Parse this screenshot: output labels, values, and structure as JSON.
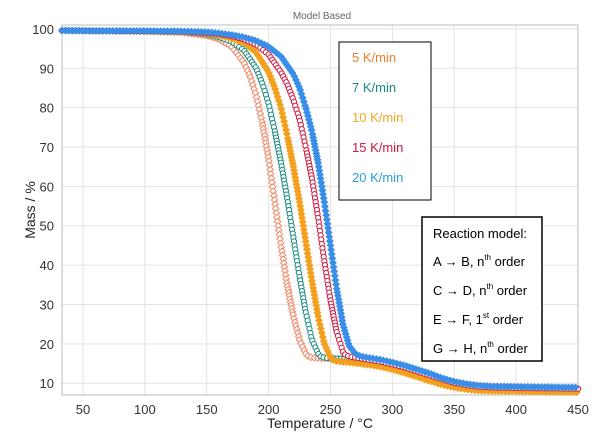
{
  "chart_data": {
    "type": "line",
    "title": "Model Based",
    "xlabel": "Temperature / °C",
    "ylabel": "Mass / %",
    "xlim": [
      33,
      450
    ],
    "ylim": [
      7,
      101
    ],
    "xticks": [
      50,
      100,
      150,
      200,
      250,
      300,
      350,
      400,
      450
    ],
    "yticks": [
      10,
      20,
      30,
      40,
      50,
      60,
      70,
      80,
      90,
      100
    ],
    "grid": true,
    "legend_position": "top-center-right",
    "series": [
      {
        "name": "5 K/min",
        "color": "#f08a68",
        "marker": "diamond-open",
        "x": [
          33,
          60,
          100,
          130,
          150,
          160,
          170,
          180,
          185,
          190,
          195,
          200,
          205,
          210,
          215,
          220,
          225,
          230,
          232,
          235,
          240,
          250,
          260,
          270,
          280,
          290,
          300,
          310,
          320,
          330,
          340,
          350,
          360,
          370,
          380,
          400,
          420,
          450
        ],
        "y": [
          99.6,
          99.5,
          99.4,
          99.1,
          98.3,
          97.4,
          95.5,
          91.5,
          88,
          83,
          76,
          67,
          56,
          45,
          35,
          27,
          21,
          17.5,
          16.8,
          16.5,
          16.4,
          16.2,
          16.2,
          16,
          15.6,
          15.2,
          14.6,
          13.8,
          13,
          12,
          11,
          10.2,
          9.6,
          9.2,
          9,
          8.9,
          8.8,
          8.7
        ]
      },
      {
        "name": "7 K/min",
        "color": "#1a8a80",
        "marker": "circle-open",
        "x": [
          33,
          60,
          100,
          130,
          150,
          160,
          170,
          180,
          190,
          195,
          200,
          205,
          210,
          215,
          220,
          225,
          230,
          235,
          240,
          242,
          245,
          250,
          260,
          270,
          280,
          290,
          300,
          310,
          320,
          330,
          340,
          350,
          360,
          370,
          380,
          400,
          420,
          450
        ],
        "y": [
          99.6,
          99.5,
          99.4,
          99.2,
          98.6,
          97.9,
          96.8,
          94.6,
          90,
          86,
          81,
          74,
          66,
          57,
          47,
          37,
          28,
          21,
          17.5,
          16.8,
          16.5,
          16.3,
          16.2,
          16,
          15.6,
          15.2,
          14.6,
          13.8,
          13,
          12,
          11,
          10.2,
          9.6,
          9.1,
          8.9,
          8.8,
          8.7,
          8.6
        ]
      },
      {
        "name": "10 K/min",
        "color": "#f3a01e",
        "marker": "diamond-filled",
        "x": [
          33,
          60,
          100,
          130,
          150,
          160,
          170,
          180,
          190,
          200,
          205,
          210,
          215,
          220,
          225,
          230,
          235,
          240,
          245,
          250,
          252,
          255,
          260,
          270,
          280,
          290,
          300,
          310,
          320,
          330,
          340,
          350,
          360,
          370,
          380,
          400,
          420,
          450
        ],
        "y": [
          99.6,
          99.5,
          99.4,
          99.2,
          98.8,
          98.3,
          97.6,
          96.5,
          94,
          89,
          85,
          80,
          73,
          65,
          56,
          46,
          36,
          27,
          20,
          16.5,
          15.9,
          15.6,
          15.4,
          15.1,
          14.7,
          14.2,
          13.5,
          12.6,
          11.6,
          10.6,
          9.6,
          8.9,
          8.4,
          8.1,
          8,
          7.9,
          7.8,
          7.7
        ]
      },
      {
        "name": "15 K/min",
        "color": "#d0173c",
        "marker": "circle-open",
        "x": [
          33,
          60,
          100,
          130,
          150,
          160,
          170,
          180,
          190,
          200,
          210,
          215,
          220,
          225,
          230,
          235,
          240,
          245,
          250,
          255,
          260,
          262,
          265,
          270,
          280,
          290,
          300,
          310,
          320,
          330,
          340,
          350,
          360,
          370,
          380,
          400,
          420,
          450
        ],
        "y": [
          99.6,
          99.5,
          99.4,
          99.3,
          99,
          98.7,
          98.2,
          97.4,
          96,
          93.5,
          89,
          86,
          82,
          77,
          70,
          62,
          52,
          41,
          31,
          23,
          18,
          17.2,
          16.8,
          16.5,
          16,
          15.5,
          14.8,
          14,
          13,
          12,
          11,
          10.1,
          9.5,
          9.1,
          8.9,
          8.8,
          8.7,
          8.6
        ]
      },
      {
        "name": "20 K/min",
        "color": "#3a8ee8",
        "marker": "diamond-filled",
        "x": [
          33,
          60,
          100,
          130,
          150,
          160,
          170,
          180,
          190,
          200,
          210,
          220,
          225,
          230,
          235,
          240,
          245,
          250,
          255,
          260,
          265,
          270,
          272,
          275,
          280,
          290,
          300,
          310,
          320,
          330,
          340,
          350,
          360,
          370,
          380,
          400,
          420,
          450
        ],
        "y": [
          99.6,
          99.5,
          99.5,
          99.4,
          99.2,
          98.9,
          98.5,
          97.9,
          97,
          95.5,
          93,
          88.5,
          85,
          80,
          74,
          66,
          56,
          45,
          34,
          25,
          19.5,
          17.5,
          17.1,
          16.8,
          16.5,
          16,
          15.3,
          14.5,
          13.5,
          12.5,
          11.3,
          10.4,
          9.8,
          9.4,
          9.2,
          9.1,
          9,
          8.9
        ]
      }
    ],
    "legend": [
      {
        "label": "5 K/min",
        "color": "#e6802a"
      },
      {
        "label": "7 K/min",
        "color": "#1a8a80"
      },
      {
        "label": "10 K/min",
        "color": "#f3a81e"
      },
      {
        "label": "15 K/min",
        "color": "#d0173c"
      },
      {
        "label": "20 K/min",
        "color": "#2a9fd8"
      }
    ],
    "model_box": {
      "title": "Reaction model:",
      "rows": [
        {
          "pre": "A → B, n",
          "sup": "th",
          "post": " order"
        },
        {
          "pre": "C → D, n",
          "sup": "th",
          "post": " order"
        },
        {
          "pre": "E → F, 1",
          "sup": "st",
          "post": " order"
        },
        {
          "pre": "G → H, n",
          "sup": "th",
          "post": " order"
        }
      ]
    }
  }
}
